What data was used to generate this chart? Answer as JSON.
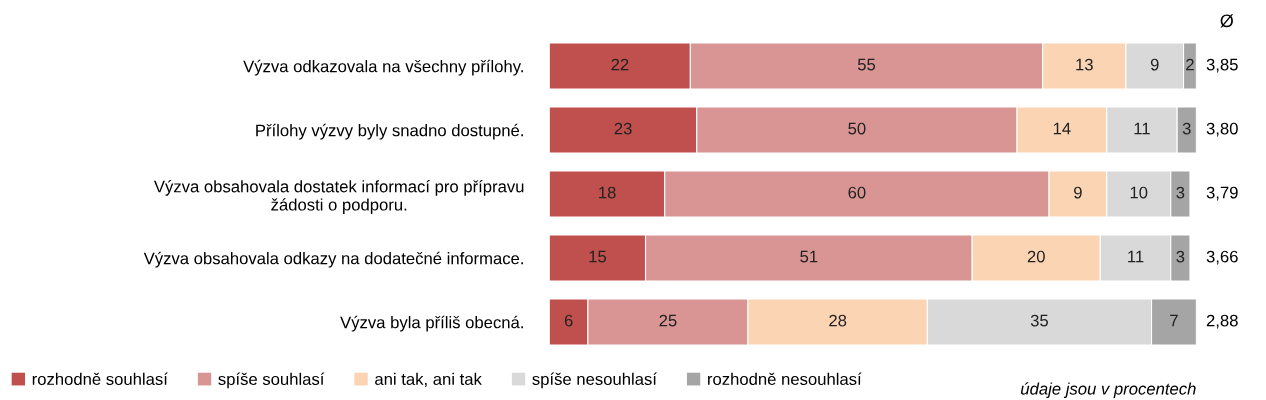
{
  "chart_data": {
    "type": "bar",
    "orientation": "horizontal",
    "stacked": true,
    "data_labels": true,
    "legend": "bottom",
    "grid": false,
    "tick_labels": "y",
    "xlim": [
      0,
      101
    ],
    "categories": [
      "Výzva odkazovala na všechny přílohy.",
      "Přílohy výzvy byly snadno dostupné.",
      "Výzva obsahovala dostatek informací pro přípravu žádosti o podporu.",
      "Výzva obsahovala odkazy na dodatečné informace.",
      "Výzva byla příliš obecná."
    ],
    "series": [
      {
        "name": "rozhodně souhlasí",
        "color": "#c0504d",
        "values": [
          22,
          23,
          18,
          15,
          6
        ]
      },
      {
        "name": "spíše souhlasí",
        "color": "#d99594",
        "values": [
          55,
          50,
          60,
          51,
          25
        ]
      },
      {
        "name": "ani tak, ani tak",
        "color": "#fbd4b4",
        "values": [
          13,
          14,
          9,
          20,
          28
        ]
      },
      {
        "name": "spíše nesouhlasí",
        "color": "#d9d9d9",
        "values": [
          9,
          11,
          10,
          11,
          35
        ]
      },
      {
        "name": "rozhodně nesouhlasí",
        "color": "#a5a5a5",
        "values": [
          2,
          3,
          3,
          3,
          7
        ]
      }
    ],
    "annotations": [
      "Ø",
      "3,85",
      "3,80",
      "3,79",
      "3,66",
      "2,88",
      "údaje jsou v procentech"
    ]
  }
}
